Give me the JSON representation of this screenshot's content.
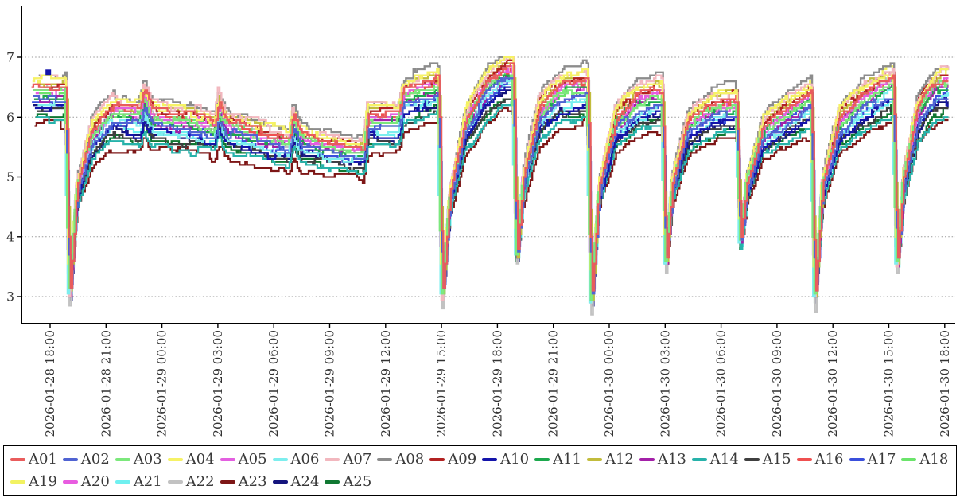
{
  "page": {
    "background": "#ffffff"
  },
  "chart_data": {
    "type": "line",
    "title": "",
    "grid": {
      "horizontal": true,
      "style": "dotted",
      "color": "#9a9a9a"
    },
    "legend": {
      "position": "bottom",
      "border_color": "#000000",
      "rows": [
        20,
        5
      ]
    },
    "x_axis": {
      "start_hour": 17.0,
      "end_hour": 66.2,
      "tick_hours": [
        18,
        21,
        24,
        27,
        30,
        33,
        36,
        39,
        42,
        45,
        48,
        51,
        54,
        57,
        60,
        63,
        66
      ],
      "tick_labels": [
        "2026-01-28 18:00",
        "2026-01-28 21:00",
        "2026-01-29 00:00",
        "2026-01-29 03:00",
        "2026-01-29 06:00",
        "2026-01-29 09:00",
        "2026-01-29 12:00",
        "2026-01-29 15:00",
        "2026-01-29 18:00",
        "2026-01-29 21:00",
        "2026-01-30 00:00",
        "2026-01-30 03:00",
        "2026-01-30 06:00",
        "2026-01-30 09:00",
        "2026-01-30 12:00",
        "2026-01-30 15:00",
        "2026-01-30 18:00"
      ],
      "label_rotation_deg": 90
    },
    "y_axis": {
      "tick_values": [
        3,
        4,
        5,
        6,
        7
      ],
      "tick_labels": [
        "3",
        "4",
        "5",
        "6",
        "7"
      ],
      "min": 2.55,
      "max": 7.85
    },
    "series": [
      {
        "name": "A01",
        "color": "#E95C5C",
        "offset": 0.17,
        "dip_extra": 0
      },
      {
        "name": "A02",
        "color": "#5063D2",
        "offset": -0.06,
        "dip_extra": 0
      },
      {
        "name": "A03",
        "color": "#7CE87C",
        "offset": 0.04,
        "dip_extra": 0
      },
      {
        "name": "A04",
        "color": "#F6F266",
        "offset": 0.27,
        "dip_extra": 0
      },
      {
        "name": "A05",
        "color": "#E35FE0",
        "offset": 0.1,
        "dip_extra": 0
      },
      {
        "name": "A06",
        "color": "#7DEEEE",
        "offset": -0.13,
        "dip_extra": 0
      },
      {
        "name": "A07",
        "color": "#F2B7BE",
        "offset": 0.31,
        "dip_extra": 0
      },
      {
        "name": "A08",
        "color": "#8C8C8C",
        "offset": 0.4,
        "dip_extra": 0
      },
      {
        "name": "A09",
        "color": "#B22222",
        "offset": 0.22,
        "dip_extra": 0
      },
      {
        "name": "A10",
        "color": "#1414AA",
        "offset": -0.22,
        "dip_extra": 0
      },
      {
        "name": "A11",
        "color": "#1CA84D",
        "offset": 0.01,
        "dip_extra": 0
      },
      {
        "name": "A12",
        "color": "#C2BC3C",
        "offset": 0.24,
        "dip_extra": 0
      },
      {
        "name": "A13",
        "color": "#A320A8",
        "offset": -0.02,
        "dip_extra": 0
      },
      {
        "name": "A14",
        "color": "#27B2AA",
        "offset": -0.42,
        "dip_extra": 0
      },
      {
        "name": "A15",
        "color": "#3F3F3F",
        "offset": -0.3,
        "dip_extra": 0
      },
      {
        "name": "A16",
        "color": "#EF5050",
        "offset": 0.14,
        "dip_extra": 0
      },
      {
        "name": "A17",
        "color": "#3A4FDC",
        "offset": -0.1,
        "dip_extra": 0
      },
      {
        "name": "A18",
        "color": "#6BE46B",
        "offset": 0.06,
        "dip_extra": 0
      },
      {
        "name": "A19",
        "color": "#F2F261",
        "offset": 0.29,
        "dip_extra": 0
      },
      {
        "name": "A20",
        "color": "#E85CE0",
        "offset": 0.08,
        "dip_extra": 0
      },
      {
        "name": "A21",
        "color": "#6FF0F0",
        "offset": -0.17,
        "dip_extra": 0
      },
      {
        "name": "A22",
        "color": "#C2C2C2",
        "offset": 0.12,
        "dip_extra": -0.18
      },
      {
        "name": "A23",
        "color": "#7D1616",
        "offset": -0.52,
        "dip_extra": 0
      },
      {
        "name": "A24",
        "color": "#14147D",
        "offset": -0.26,
        "dip_extra": 0
      },
      {
        "name": "A25",
        "color": "#107832",
        "offset": -0.35,
        "dip_extra": 0
      }
    ],
    "base_curve": {
      "hours": [
        17.0,
        18.8,
        19.0,
        19.4,
        20.2,
        21.3,
        22.8,
        23.0,
        23.4,
        25.5,
        26.8,
        27.0,
        27.4,
        29.5,
        30.8,
        31.0,
        31.4,
        33.0,
        34.8,
        35.0,
        36.7,
        36.9,
        38.8,
        39.0,
        39.4,
        40.2,
        41.3,
        42.3,
        42.8,
        43.0,
        43.35,
        44.2,
        45.3,
        46.8,
        47.0,
        47.4,
        48.3,
        49.5,
        50.8,
        51.0,
        51.35,
        52.2,
        53.5,
        54.8,
        55.0,
        55.35,
        56.2,
        57.5,
        58.8,
        59.0,
        59.4,
        60.3,
        61.5,
        62.8,
        63.2,
        63.4,
        63.75,
        64.5,
        65.5,
        66.2
      ],
      "values": [
        6.35,
        6.35,
        2.95,
        4.75,
        5.65,
        6.0,
        5.95,
        6.25,
        5.95,
        5.85,
        5.75,
        6.1,
        5.8,
        5.6,
        5.5,
        5.9,
        5.6,
        5.45,
        5.35,
        5.9,
        5.9,
        6.25,
        6.45,
        2.95,
        4.6,
        5.8,
        6.4,
        6.65,
        6.7,
        3.6,
        4.9,
        6.0,
        6.35,
        6.45,
        2.85,
        4.7,
        5.85,
        6.2,
        6.3,
        3.5,
        4.85,
        5.8,
        6.05,
        6.15,
        3.85,
        4.85,
        5.7,
        6.0,
        6.25,
        2.9,
        4.8,
        5.85,
        6.2,
        6.45,
        6.5,
        3.45,
        4.9,
        6.0,
        6.45,
        6.5
      ]
    },
    "band": {
      "compress_low": 3.2,
      "compress_span": 2.9,
      "w_min": 0.12,
      "w_max": 1.0
    },
    "sampling": {
      "step_hours": 0.1,
      "quantize": 0.05,
      "noise1_amp": 0.08,
      "noise1_block_hours": 1.333,
      "noise2_amp": 0.035,
      "noise2_block_hours": 0.45,
      "value_clamp": [
        2.58,
        7.02
      ],
      "start_stagger_hours": 0.5
    },
    "point_markers": [
      {
        "series": "A10",
        "color": "#1414AA",
        "hour": 17.9,
        "value": 6.75
      }
    ],
    "line_width": 2.3
  }
}
